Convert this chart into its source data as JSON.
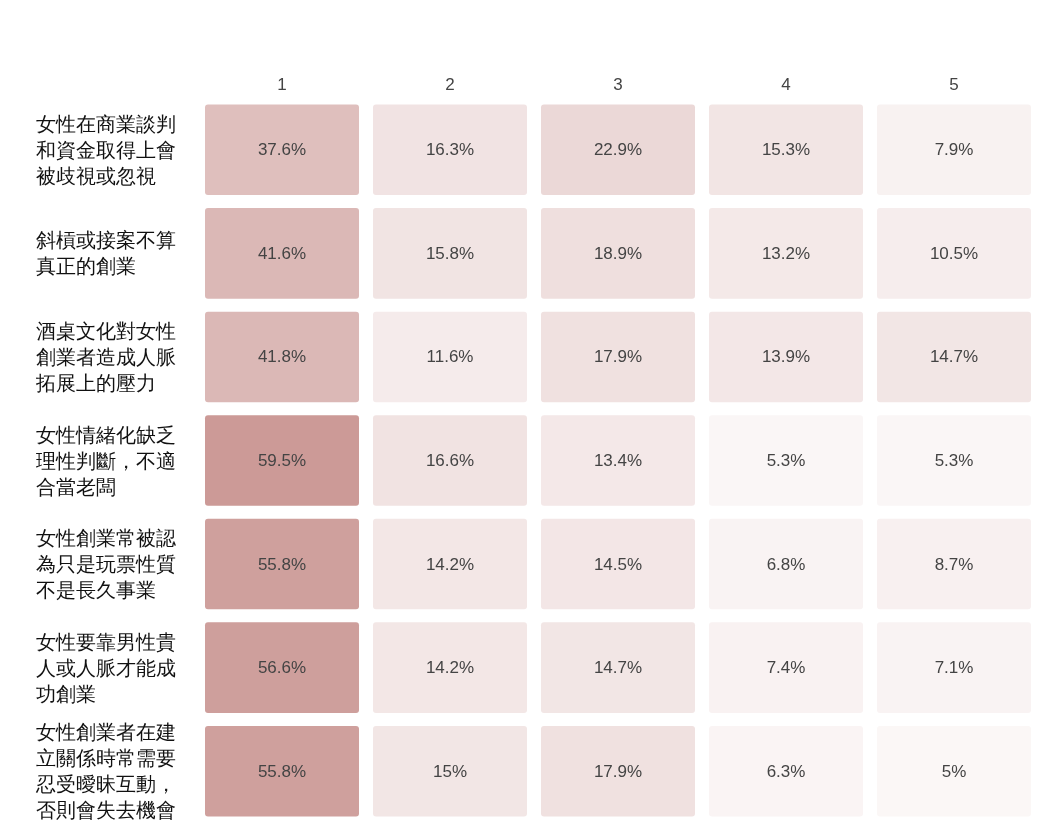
{
  "chart_data": {
    "type": "heatmap",
    "categories": [
      "1",
      "2",
      "3",
      "4",
      "5"
    ],
    "y_categories": [
      "女性在商業談判和資金取得上會被歧視或忽視",
      "斜槓或接案不算真正的創業",
      "酒桌文化對女性創業者造成人脈拓展上的壓力",
      "女性情緒化缺乏理性判斷，不適合當老闆",
      "女性創業常被認為只是玩票性質不是長久事業",
      "女性要靠男性貴人或人脈才能成功創業",
      "女性創業者在建立關係時常需要忍受曖昧互動，否則會失去機會"
    ],
    "cells": [
      [
        37.6,
        16.3,
        22.9,
        15.3,
        7.9
      ],
      [
        41.6,
        15.8,
        18.9,
        13.2,
        10.5
      ],
      [
        41.8,
        11.6,
        17.9,
        13.9,
        14.7
      ],
      [
        59.5,
        16.6,
        13.4,
        5.3,
        5.3
      ],
      [
        55.8,
        14.2,
        14.5,
        6.8,
        8.7
      ],
      [
        56.6,
        14.2,
        14.7,
        7.4,
        7.1
      ],
      [
        55.8,
        15,
        17.9,
        6.3,
        5
      ]
    ],
    "cell_labels": [
      [
        "37.6%",
        "16.3%",
        "22.9%",
        "15.3%",
        "7.9%"
      ],
      [
        "41.6%",
        "15.8%",
        "18.9%",
        "13.2%",
        "10.5%"
      ],
      [
        "41.8%",
        "11.6%",
        "17.9%",
        "13.9%",
        "14.7%"
      ],
      [
        "59.5%",
        "16.6%",
        "13.4%",
        "5.3%",
        "5.3%"
      ],
      [
        "55.8%",
        "14.2%",
        "14.5%",
        "6.8%",
        "8.7%"
      ],
      [
        "56.6%",
        "14.2%",
        "14.7%",
        "7.4%",
        "7.1%"
      ],
      [
        "55.8%",
        "15%",
        "17.9%",
        "6.3%",
        "5%"
      ]
    ],
    "color": "#cc9a97"
  }
}
